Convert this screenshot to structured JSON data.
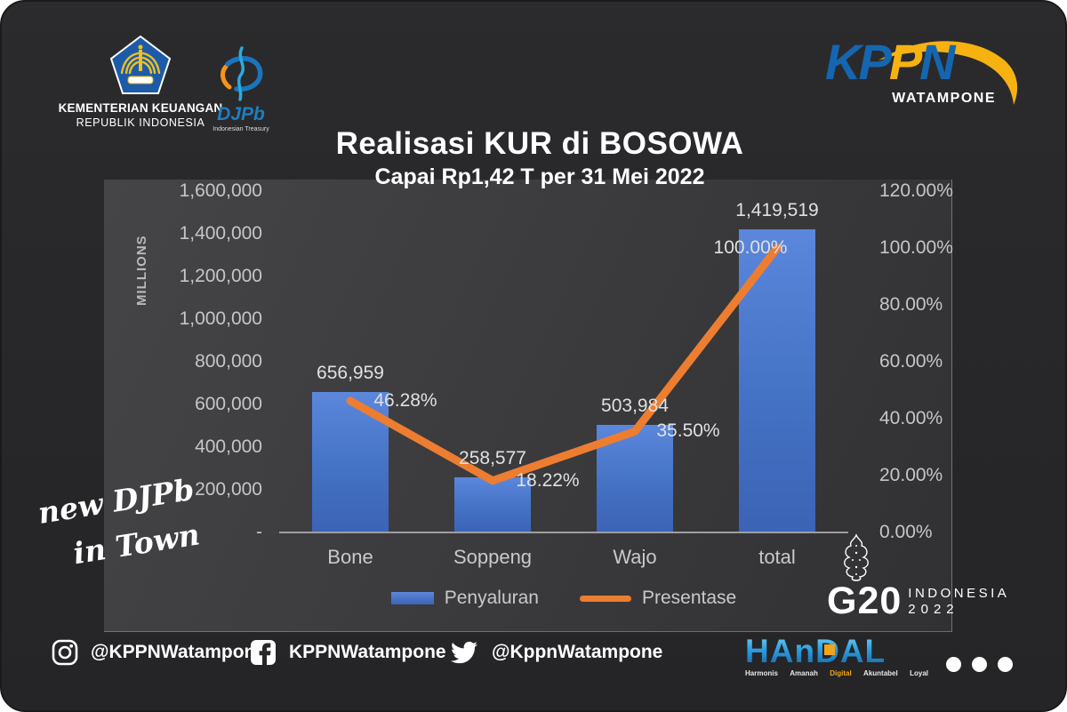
{
  "brand": {
    "kemenkeu": {
      "line1": "KEMENTERIAN KEUANGAN",
      "line2": "REPUBLIK INDONESIA"
    },
    "djpb": {
      "name": "DJPb",
      "tagline": "Indonesian Treasury"
    },
    "kppn": {
      "name": "KPPN",
      "city": "WATAMPONE"
    }
  },
  "title": {
    "main": "Realisasi KUR di BOSOWA",
    "subtitle": "Capai Rp1,42 T per 31 Mei 2022"
  },
  "chart_data": {
    "type": "combo-bar-line",
    "categories": [
      "Bone",
      "Soppeng",
      "Wajo",
      "total"
    ],
    "series": [
      {
        "name": "Penyaluran",
        "type": "bar",
        "axis": "left",
        "color": "#4472C4",
        "values": [
          656959,
          258577,
          503984,
          1419519
        ],
        "labels": [
          "656,959",
          "258,577",
          "503,984",
          "1,419,519"
        ]
      },
      {
        "name": "Presentase",
        "type": "line",
        "axis": "right",
        "color": "#ED7D31",
        "values_pct": [
          46.28,
          18.22,
          35.5,
          100.0
        ],
        "labels": [
          "46.28%",
          "18.22%",
          "35.50%",
          "100.00%"
        ]
      }
    ],
    "left_axis": {
      "title": "MILLIONS",
      "min": 0,
      "max": 1600000,
      "ticks": [
        "1,600,000",
        "1,400,000",
        "1,200,000",
        "1,000,000",
        "800,000",
        "600,000",
        "400,000",
        "200,000",
        "-"
      ]
    },
    "right_axis": {
      "min": 0,
      "max_pct": 120,
      "ticks": [
        "120.00%",
        "100.00%",
        "80.00%",
        "60.00%",
        "40.00%",
        "20.00%",
        "0.00%"
      ]
    },
    "legend": {
      "position": "bottom",
      "entries": [
        "Penyaluran",
        "Presentase"
      ]
    },
    "grid": false
  },
  "watermark": {
    "line1": "new DJPb",
    "line2": "in Town"
  },
  "footer": {
    "social": [
      {
        "icon": "instagram",
        "handle": "@KPPNWatampone"
      },
      {
        "icon": "facebook",
        "handle": "KPPNWatampone"
      },
      {
        "icon": "twitter",
        "handle": "@KppnWatampone"
      }
    ],
    "g20": {
      "name": "G20",
      "country": "INDONESIA",
      "year": "2022"
    },
    "handal": {
      "word": "HAnDAL",
      "values": [
        "Harmonis",
        "Amanah",
        "Digital",
        "Akuntabel",
        "Loyal"
      ]
    }
  },
  "colors": {
    "bar_blue": "#4472C4",
    "line_orange": "#ED7D31",
    "kppn_blue": "#1566B0",
    "kppn_yellow": "#F6B211",
    "handal_blue": "#2D9CDB",
    "handal_yellow": "#F2A51A"
  }
}
